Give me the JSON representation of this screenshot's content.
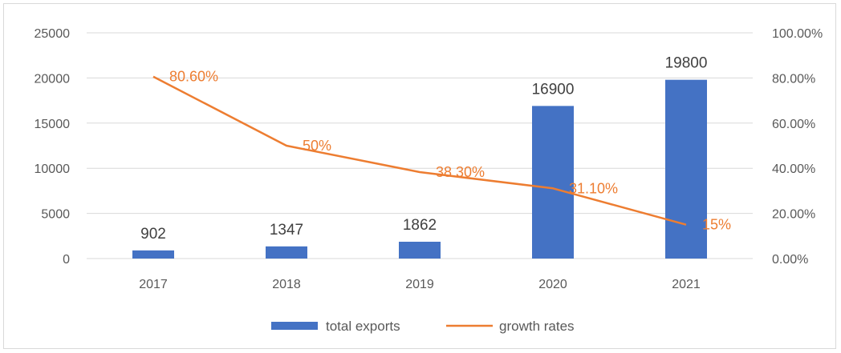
{
  "chart_data": {
    "type": "bar",
    "categories": [
      "2017",
      "2018",
      "2019",
      "2020",
      "2021"
    ],
    "series": [
      {
        "name": "total exports",
        "type": "bar",
        "axis": "left",
        "values": [
          902,
          1347,
          1862,
          16900,
          19800
        ],
        "labels": [
          "902",
          "1347",
          "1862",
          "16900",
          "19800"
        ],
        "color": "#4472C4"
      },
      {
        "name": "growth rates",
        "type": "line",
        "axis": "right",
        "values": [
          80.6,
          50,
          38.3,
          31.1,
          15
        ],
        "labels": [
          "80.60%",
          "50%",
          "38.30%",
          "31.10%",
          "15%"
        ],
        "color": "#ED7D31"
      }
    ],
    "y_left": {
      "ylim": [
        0,
        25000
      ],
      "ticks": [
        0,
        5000,
        10000,
        15000,
        20000,
        25000
      ],
      "tick_labels": [
        "0",
        "5000",
        "10000",
        "15000",
        "20000",
        "25000"
      ]
    },
    "y_right": {
      "ylim": [
        0,
        100
      ],
      "ticks": [
        0,
        20,
        40,
        60,
        80,
        100
      ],
      "tick_labels": [
        "0.00%",
        "20.00%",
        "40.00%",
        "60.00%",
        "80.00%",
        "100.00%"
      ]
    },
    "grid": true,
    "grid_color": "#d9d9d9",
    "legend_position": "bottom"
  }
}
